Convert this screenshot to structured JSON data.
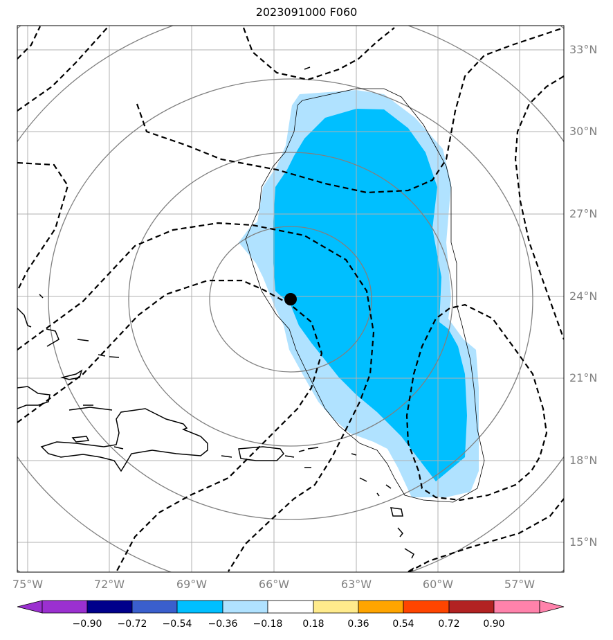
{
  "title": "2023091000 F060",
  "latitude_labels": [
    "33°N",
    "30°N",
    "27°N",
    "24°N",
    "21°N",
    "18°N",
    "15°N"
  ],
  "longitude_labels": [
    "75°W",
    "72°W",
    "69°W",
    "66°W",
    "63°W",
    "60°W",
    "57°W"
  ],
  "colorbar": {
    "ticks": [
      "−0.90",
      "−0.72",
      "−0.54",
      "−0.36",
      "−0.18",
      "0.18",
      "0.36",
      "0.54",
      "0.72",
      "0.90"
    ],
    "colors": [
      "#9b30d0",
      "#00008b",
      "#3a5fcd",
      "#00bfff",
      "#b0e2ff",
      "#ffffff",
      "#ffeb8c",
      "#ffa500",
      "#ff4500",
      "#b22222",
      "#ff82ab"
    ]
  },
  "storm_center": {
    "lon": "65.3°W",
    "lat": "23.9°N"
  }
}
